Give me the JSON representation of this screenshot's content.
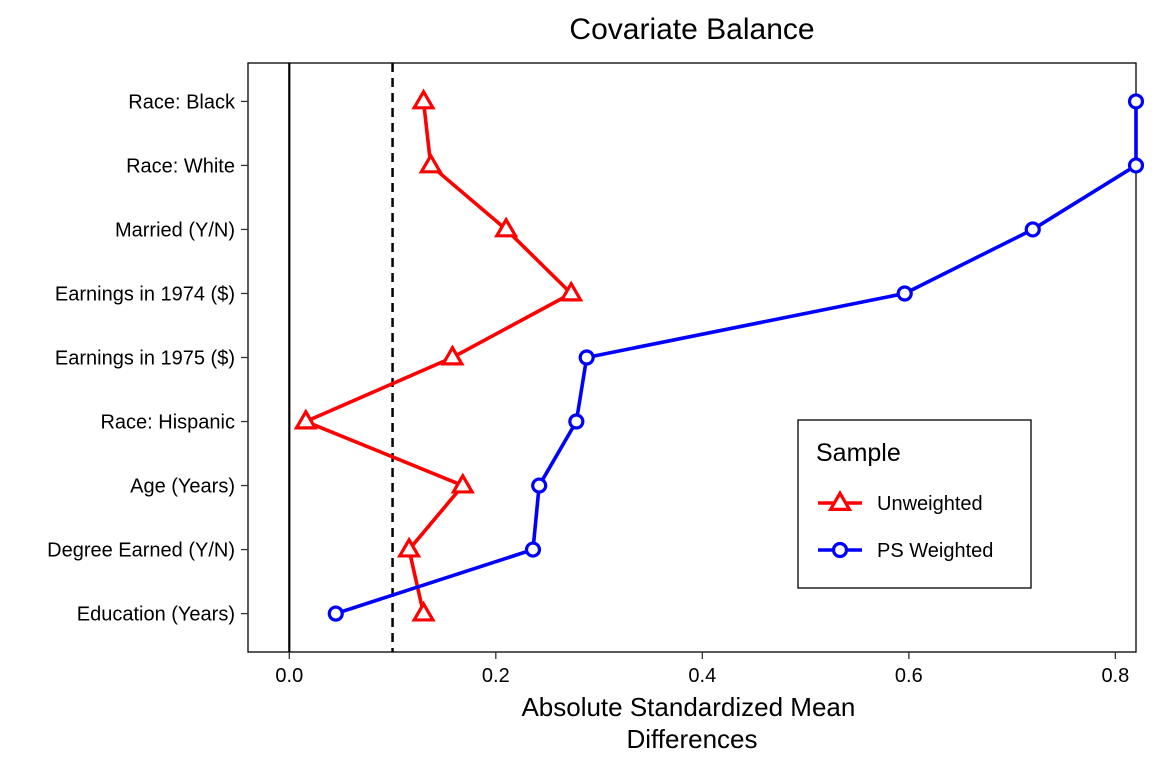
{
  "chart_data": {
    "type": "line",
    "orientation": "horizontal",
    "title": "Covariate Balance",
    "xlabel": [
      "Absolute Standardized Mean",
      "Differences"
    ],
    "ylabel": "",
    "xlim": [
      -0.04,
      0.82
    ],
    "x_ticks": [
      0.0,
      0.2,
      0.4,
      0.6,
      0.8
    ],
    "x_tick_labels": [
      "0.0",
      "0.2",
      "0.4",
      "0.6",
      "0.8"
    ],
    "categories": [
      "Race: Black",
      "Race: White",
      "Married (Y/N)",
      "Earnings in 1974 ($)",
      "Earnings in 1975 ($)",
      "Race: Hispanic",
      "Age (Years)",
      "Degree Earned (Y/N)",
      "Education (Years)"
    ],
    "reference_lines": [
      {
        "x": 0.0,
        "style": "solid"
      },
      {
        "x": 0.1,
        "style": "dashed"
      }
    ],
    "series": [
      {
        "name": "Unweighted",
        "color": "#ff0000",
        "marker": "triangle",
        "values": [
          0.13,
          0.137,
          0.21,
          0.273,
          0.158,
          0.016,
          0.168,
          0.116,
          0.13
        ]
      },
      {
        "name": "PS Weighted",
        "color": "#0000ff",
        "marker": "circle",
        "values": [
          0.82,
          0.82,
          0.72,
          0.596,
          0.288,
          0.278,
          0.242,
          0.236,
          0.045
        ]
      }
    ],
    "legend": {
      "title": "Sample",
      "position": "bottom-right-inside"
    },
    "grid": false
  }
}
